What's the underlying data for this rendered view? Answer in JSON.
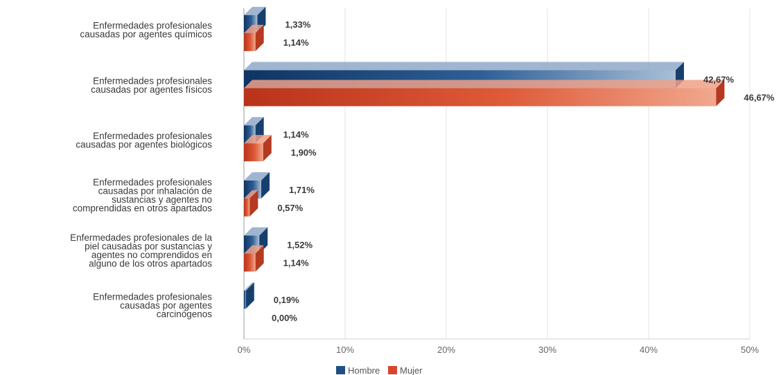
{
  "chart_data": {
    "type": "bar",
    "orientation": "horizontal",
    "categories": [
      [
        "Enfermedades profesionales",
        "causadas por agentes químicos"
      ],
      [
        "Enfermedades profesionales",
        "causadas por agentes físicos"
      ],
      [
        "Enfermedades profesionales",
        "causadas por agentes biológicos"
      ],
      [
        "Enfermedades profesionales",
        "causadas por inhalación de",
        "sustancias y agentes no",
        "comprendidas en otros apartados"
      ],
      [
        "Enfermedades profesionales de la",
        "piel causadas por sustancias y",
        "agentes no comprendidos en",
        "alguno de los otros apartados"
      ],
      [
        "Enfermedades profesionales",
        "causadas por agentes",
        "carcinógenos"
      ]
    ],
    "series": [
      {
        "name": "Hombre",
        "color": "#1f4f86",
        "values": [
          1.33,
          42.67,
          1.14,
          1.71,
          1.52,
          0.19
        ],
        "labels": [
          "1,33%",
          "42,67%",
          "1,14%",
          "1,71%",
          "1,52%",
          "0,19%"
        ]
      },
      {
        "name": "Mujer",
        "color": "#d9462b",
        "values": [
          1.14,
          46.67,
          1.9,
          0.57,
          1.14,
          0.0
        ],
        "labels": [
          "1,14%",
          "46,67%",
          "1,90%",
          "0,57%",
          "1,14%",
          "0,00%"
        ]
      }
    ],
    "xlim": [
      0,
      50
    ],
    "xticks": [
      {
        "value": 0,
        "label": "0%"
      },
      {
        "value": 10,
        "label": "10%"
      },
      {
        "value": 20,
        "label": "20%"
      },
      {
        "value": 30,
        "label": "30%"
      },
      {
        "value": 40,
        "label": "40%"
      },
      {
        "value": 50,
        "label": "50%"
      }
    ],
    "grid": true,
    "legend": "bottom"
  }
}
